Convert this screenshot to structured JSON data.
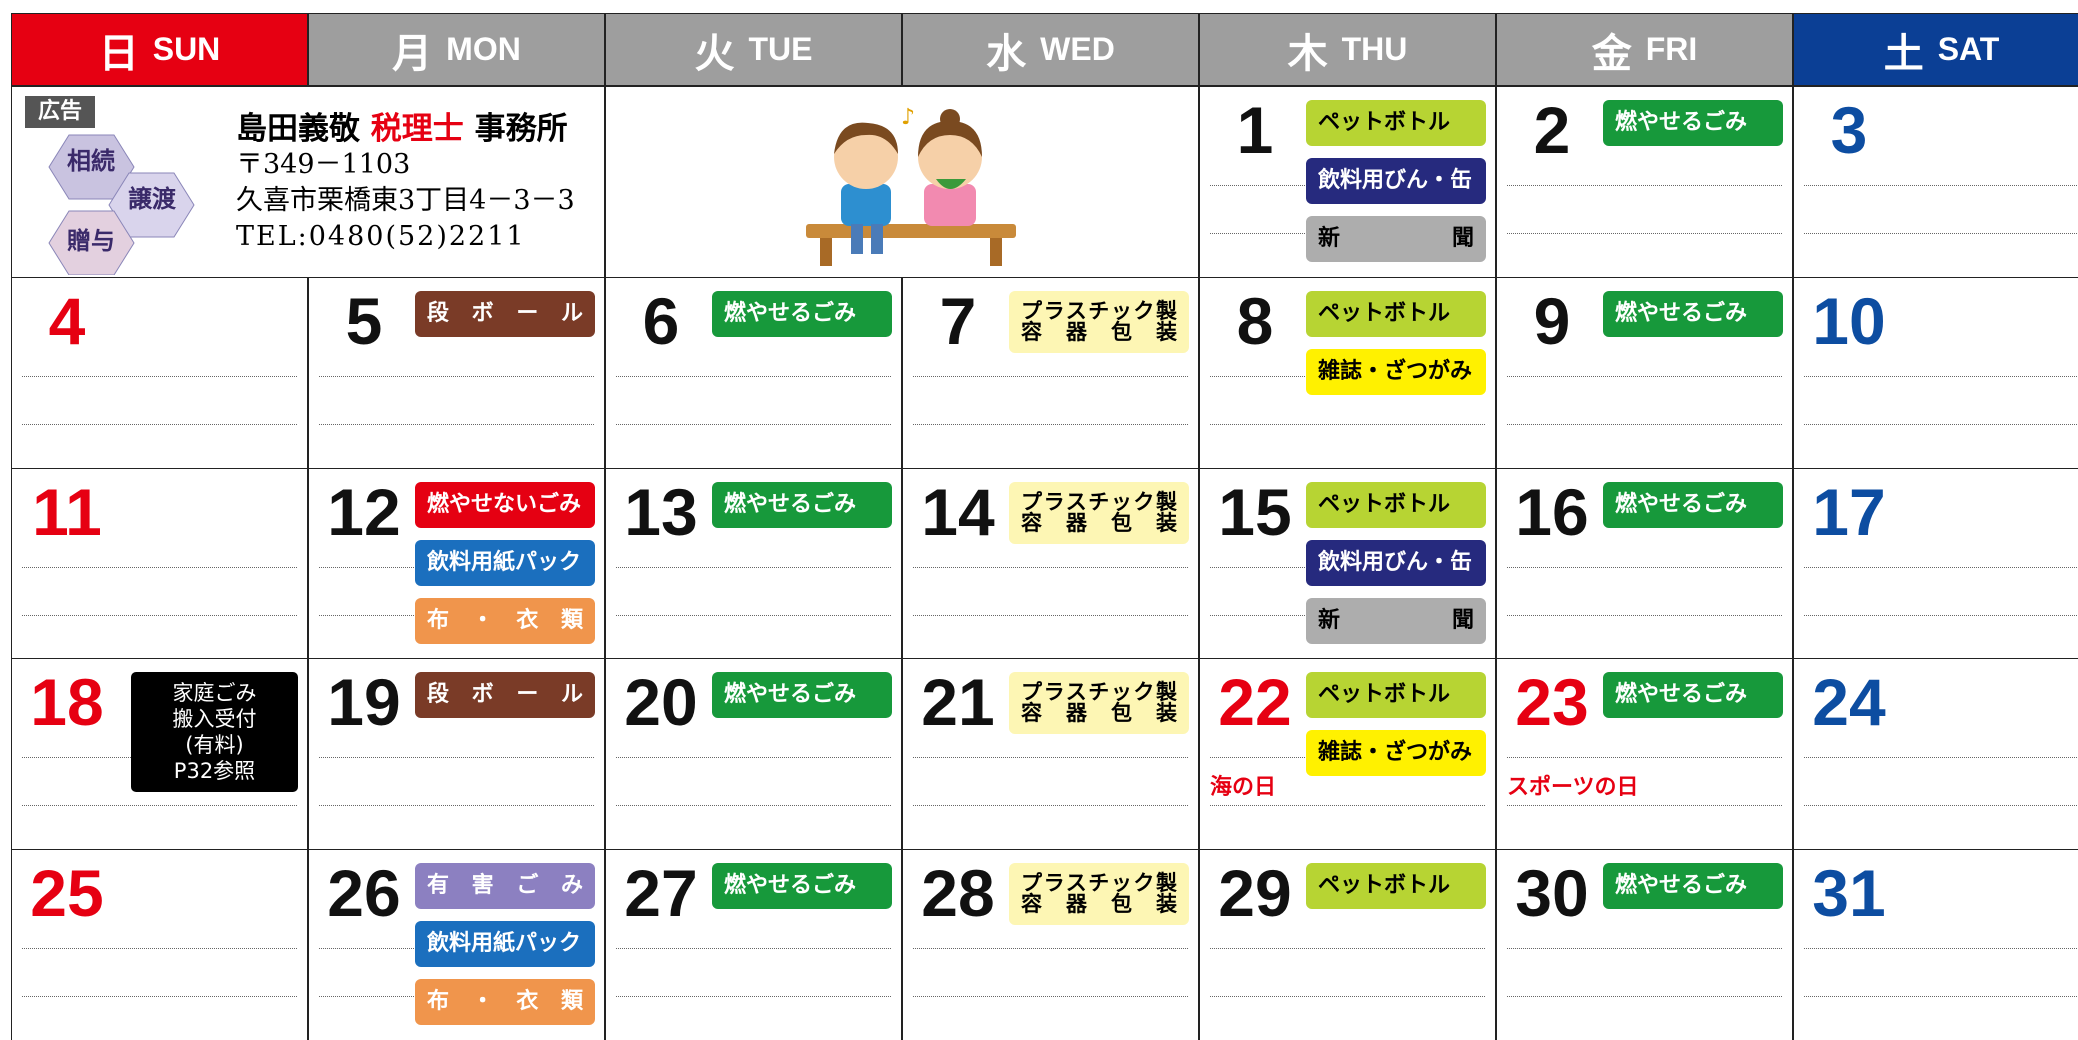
{
  "header": {
    "days": [
      {
        "kanji": "日",
        "name": "SUN",
        "bg": "#e60012",
        "number_color": "#e60012"
      },
      {
        "kanji": "月",
        "name": "MON",
        "bg": "#9e9e9e",
        "number_color": "#111111"
      },
      {
        "kanji": "火",
        "name": "TUE",
        "bg": "#9e9e9e",
        "number_color": "#111111"
      },
      {
        "kanji": "水",
        "name": "WED",
        "bg": "#9e9e9e",
        "number_color": "#111111"
      },
      {
        "kanji": "木",
        "name": "THU",
        "bg": "#9e9e9e",
        "number_color": "#111111"
      },
      {
        "kanji": "金",
        "name": "FRI",
        "bg": "#9e9e9e",
        "number_color": "#111111"
      },
      {
        "kanji": "土",
        "name": "SAT",
        "bg": "#0b3f95",
        "number_color": "#0d4da1"
      }
    ]
  },
  "ad": {
    "badge": "広告",
    "hexagons": [
      "相続",
      "譲渡",
      "贈与"
    ],
    "name_parts": [
      "島田義敬",
      "税理士",
      "事務所"
    ],
    "postal": "〒349－1103",
    "address": "久喜市栗橋東3丁目4－3－3",
    "tel": "TEL:0480(52)2211"
  },
  "weeks": [
    [
      null,
      null,
      null,
      null,
      {
        "day": 1,
        "tags": [
          {
            "lines": [
              "ペットボトル"
            ],
            "bg": "#b7d433",
            "fg": "#000"
          },
          {
            "lines": [
              "飲料用びん・缶"
            ],
            "bg": "#262a7e",
            "fg": "#fff"
          },
          {
            "lines": [
              "新聞"
            ],
            "bg": "#adadad",
            "fg": "#000",
            "spread": true
          }
        ]
      },
      {
        "day": 2,
        "tags": [
          {
            "lines": [
              "燃やせるごみ"
            ],
            "bg": "#17993b",
            "fg": "#fff"
          }
        ]
      },
      {
        "day": 3,
        "tags": []
      }
    ],
    [
      {
        "day": 4,
        "tags": []
      },
      {
        "day": 5,
        "tags": [
          {
            "lines": [
              "段ボール"
            ],
            "bg": "#7a3b27",
            "fg": "#fff",
            "spread": true
          }
        ]
      },
      {
        "day": 6,
        "tags": [
          {
            "lines": [
              "燃やせるごみ"
            ],
            "bg": "#17993b",
            "fg": "#fff"
          }
        ]
      },
      {
        "day": 7,
        "tags": [
          {
            "lines": [
              "プラスチック製",
              "容器包装"
            ],
            "bg": "#fdf6b4",
            "fg": "#000",
            "spread": true
          }
        ]
      },
      {
        "day": 8,
        "tags": [
          {
            "lines": [
              "ペットボトル"
            ],
            "bg": "#b7d433",
            "fg": "#000"
          },
          {
            "lines": [
              "雑誌・ざつがみ"
            ],
            "bg": "#fff100",
            "fg": "#000"
          }
        ]
      },
      {
        "day": 9,
        "tags": [
          {
            "lines": [
              "燃やせるごみ"
            ],
            "bg": "#17993b",
            "fg": "#fff"
          }
        ]
      },
      {
        "day": 10,
        "tags": []
      }
    ],
    [
      {
        "day": 11,
        "tags": []
      },
      {
        "day": 12,
        "tags": [
          {
            "lines": [
              "燃やせないごみ"
            ],
            "bg": "#e50012",
            "fg": "#fff"
          },
          {
            "lines": [
              "飲料用紙パック"
            ],
            "bg": "#1b6fbe",
            "fg": "#fff"
          },
          {
            "lines": [
              "布・衣類"
            ],
            "bg": "#f0954c",
            "fg": "#fff",
            "spread": true
          }
        ]
      },
      {
        "day": 13,
        "tags": [
          {
            "lines": [
              "燃やせるごみ"
            ],
            "bg": "#17993b",
            "fg": "#fff"
          }
        ]
      },
      {
        "day": 14,
        "tags": [
          {
            "lines": [
              "プラスチック製",
              "容器包装"
            ],
            "bg": "#fdf6b4",
            "fg": "#000",
            "spread": true
          }
        ]
      },
      {
        "day": 15,
        "tags": [
          {
            "lines": [
              "ペットボトル"
            ],
            "bg": "#b7d433",
            "fg": "#000"
          },
          {
            "lines": [
              "飲料用びん・缶"
            ],
            "bg": "#262a7e",
            "fg": "#fff"
          },
          {
            "lines": [
              "新聞"
            ],
            "bg": "#adadad",
            "fg": "#000",
            "spread": true
          }
        ]
      },
      {
        "day": 16,
        "tags": [
          {
            "lines": [
              "燃やせるごみ"
            ],
            "bg": "#17993b",
            "fg": "#fff"
          }
        ]
      },
      {
        "day": 17,
        "tags": []
      }
    ],
    [
      {
        "day": 18,
        "tags": [],
        "notice": [
          "家庭ごみ",
          "搬入受付",
          "(有料)",
          "P32参照"
        ]
      },
      {
        "day": 19,
        "tags": [
          {
            "lines": [
              "段ボール"
            ],
            "bg": "#7a3b27",
            "fg": "#fff",
            "spread": true
          }
        ]
      },
      {
        "day": 20,
        "tags": [
          {
            "lines": [
              "燃やせるごみ"
            ],
            "bg": "#17993b",
            "fg": "#fff"
          }
        ]
      },
      {
        "day": 21,
        "tags": [
          {
            "lines": [
              "プラスチック製",
              "容器包装"
            ],
            "bg": "#fdf6b4",
            "fg": "#000",
            "spread": true
          }
        ]
      },
      {
        "day": 22,
        "tags": [
          {
            "lines": [
              "ペットボトル"
            ],
            "bg": "#b7d433",
            "fg": "#000"
          },
          {
            "lines": [
              "雑誌・ざつがみ"
            ],
            "bg": "#fff100",
            "fg": "#000"
          }
        ],
        "holiday": "海の日",
        "number_color": "#e60012"
      },
      {
        "day": 23,
        "tags": [
          {
            "lines": [
              "燃やせるごみ"
            ],
            "bg": "#17993b",
            "fg": "#fff"
          }
        ],
        "holiday": "スポーツの日",
        "number_color": "#e60012"
      },
      {
        "day": 24,
        "tags": []
      }
    ],
    [
      {
        "day": 25,
        "tags": []
      },
      {
        "day": 26,
        "tags": [
          {
            "lines": [
              "有害ごみ"
            ],
            "bg": "#8c80c1",
            "fg": "#fff",
            "spread": true
          },
          {
            "lines": [
              "飲料用紙パック"
            ],
            "bg": "#1b6fbe",
            "fg": "#fff"
          },
          {
            "lines": [
              "布・衣類"
            ],
            "bg": "#f0954c",
            "fg": "#fff",
            "spread": true
          }
        ]
      },
      {
        "day": 27,
        "tags": [
          {
            "lines": [
              "燃やせるごみ"
            ],
            "bg": "#17993b",
            "fg": "#fff"
          }
        ]
      },
      {
        "day": 28,
        "tags": [
          {
            "lines": [
              "プラスチック製",
              "容器包装"
            ],
            "bg": "#fdf6b4",
            "fg": "#000",
            "spread": true
          }
        ]
      },
      {
        "day": 29,
        "tags": [
          {
            "lines": [
              "ペットボトル"
            ],
            "bg": "#b7d433",
            "fg": "#000"
          }
        ]
      },
      {
        "day": 30,
        "tags": [
          {
            "lines": [
              "燃やせるごみ"
            ],
            "bg": "#17993b",
            "fg": "#fff"
          }
        ]
      },
      {
        "day": 31,
        "tags": []
      }
    ]
  ]
}
